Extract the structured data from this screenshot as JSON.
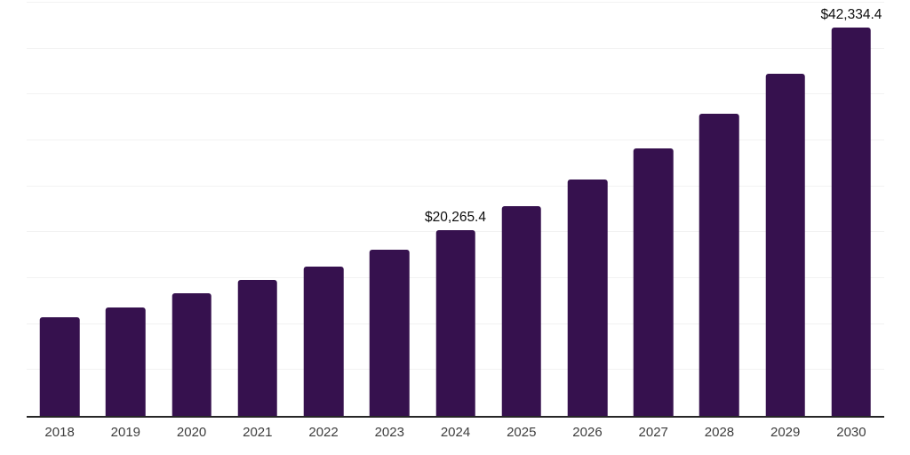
{
  "chart_data": {
    "type": "bar",
    "title": "",
    "xlabel": "",
    "ylabel": "",
    "categories": [
      "2018",
      "2019",
      "2020",
      "2021",
      "2022",
      "2023",
      "2024",
      "2025",
      "2026",
      "2027",
      "2028",
      "2029",
      "2030"
    ],
    "values": [
      10740,
      11800,
      13330,
      14760,
      16250,
      18110,
      20265.4,
      22870,
      25700,
      29100,
      32900,
      37300,
      42334.4
    ],
    "value_labels": [
      "",
      "",
      "",
      "",
      "",
      "",
      "$20,265.4",
      "",
      "",
      "",
      "",
      "",
      "$42,334.4"
    ],
    "ylim": [
      0,
      45000
    ],
    "gridline_interval": 5000,
    "grid": "horizontal",
    "legend_position": "none"
  },
  "style": {
    "bar_color": "#36114E",
    "gridline_color": "#f2f2f2",
    "axis_line_color": "#262626",
    "tick_label_color": "#3d3d3d",
    "value_label_color": "#0d0d0d",
    "background_color": "#ffffff"
  }
}
